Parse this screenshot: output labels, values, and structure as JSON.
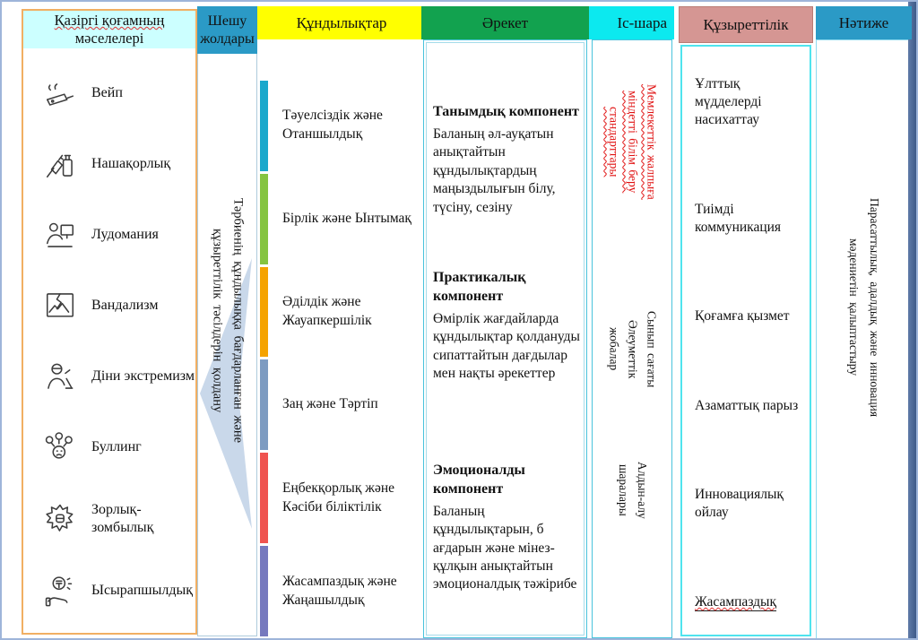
{
  "columns": {
    "problems": {
      "header": {
        "lines": [
          "Қазіргі қоғамның",
          "мәселелері"
        ],
        "bg": "#CCFFFF",
        "border": "#F1AF63"
      },
      "items": [
        {
          "icon": "vape-icon",
          "label": "Вейп"
        },
        {
          "icon": "syringe-bottle-icon",
          "label": "Нашақорлық"
        },
        {
          "icon": "gambler-computer-icon",
          "label": "Лудомания"
        },
        {
          "icon": "broken-picture-icon",
          "label": "Вандализм"
        },
        {
          "icon": "masked-person-icon",
          "label": "Діни экстремизм"
        },
        {
          "icon": "bullying-faces-icon",
          "label": "Буллинг"
        },
        {
          "icon": "fist-burst-icon",
          "label": "Зорлық-зомбылық"
        },
        {
          "icon": "coin-hand-icon",
          "label": "Ысырапшылдық"
        }
      ]
    },
    "solution": {
      "header": {
        "lines": [
          "Шешу",
          "жолдары"
        ],
        "bg": "#2B9AC6"
      },
      "text_lines": [
        "Тәрбиенің құндылыққа бағдарланған және",
        "құзыреттілік тәсілдерін қолдану"
      ],
      "arrow_color": "#C9D8EA"
    },
    "values": {
      "header": {
        "label": "Құндылықтар",
        "bg": "#FFFF00"
      },
      "items": [
        {
          "bar_color": "#1AA8CC",
          "label": "Тәуелсіздік және Отаншылдық"
        },
        {
          "bar_color": "#85C441",
          "label": "Бірлік және Ынтымақ"
        },
        {
          "bar_color": "#F5A300",
          "label": "Әділдік және Жауапкершілік"
        },
        {
          "bar_color": "#7D9BC1",
          "label": "Заң және Тәртіп"
        },
        {
          "bar_color": "#EF5350",
          "label": "Еңбекқорлық және Кәсіби біліктілік"
        },
        {
          "bar_color": "#7679BE",
          "label": "Жасампаздық және Жаңашылдық"
        }
      ]
    },
    "action": {
      "header": {
        "label": "Әрекет",
        "bg": "#12A24F"
      },
      "blocks": [
        {
          "title": "Танымдық компонент",
          "text": "Баланың әл-ауқатын анықтайтын құндылықтардың маңыздылығын білу, түсіну, сезіну"
        },
        {
          "title": "Практикалық компонент",
          "text": "Өмірлік жағдайларда құндылықтар қолдануды сипаттайтын  дағдылар мен нақты әрекеттер"
        },
        {
          "title": "Эмоционалды компонент",
          "text": "Баланың құндылықтарын, б ағдарын және мінез-құлқын анықтайтын эмоционалдық тәжірибе"
        }
      ]
    },
    "events": {
      "header": {
        "label": "Іс-шара",
        "bg": "#0CE9EF"
      },
      "block1_lines": [
        "Мемлекеттік жалпыға",
        "міндетті білім беру",
        "стандарттары"
      ],
      "block1_color": "#E01010",
      "block2_lines": [
        "Сынып сағаты",
        "Әлеуметтік",
        "жобалар"
      ],
      "block3_lines": [
        "Алдын-алу",
        "шаралары"
      ]
    },
    "competence": {
      "header": {
        "label": "Құзыреттілік",
        "bg": "#D59693",
        "border": "#B97B74"
      },
      "items": [
        "Ұлттық мүдделерді насихаттау",
        "Тиімді коммуникация",
        "Қоғамға қызмет",
        "Азаматтық парыз",
        "Инновациялық ойлау",
        "Жасампаздық"
      ]
    },
    "result": {
      "header": {
        "label": "Нәтиже",
        "bg": "#2B9AC6"
      },
      "text_lines": [
        "Парасаттылық,  адалдық  және  инновация",
        "мәдениетін  қалыптастыру"
      ]
    }
  }
}
